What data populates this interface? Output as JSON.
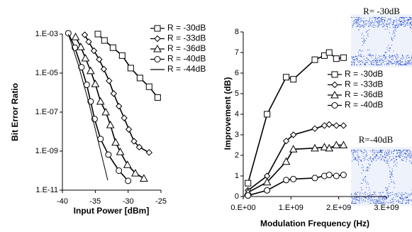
{
  "chart_data": [
    {
      "type": "line",
      "x_label": "Input Power [dBm]",
      "y_label": "Bit Error Ratio",
      "log_y": true,
      "xlim": [
        -40,
        -25
      ],
      "xticks": [
        -40,
        -35,
        -30,
        -25
      ],
      "ylim": [
        1e-11,
        0.001
      ],
      "yticks": [
        {
          "value": 0.001,
          "label": "1.E-03"
        },
        {
          "value": 1e-05,
          "label": "1.E-05"
        },
        {
          "value": 1e-07,
          "label": "1.E-07"
        },
        {
          "value": 1e-09,
          "label": "1.E-09"
        },
        {
          "value": 1e-11,
          "label": "1.E-11"
        }
      ],
      "series": [
        {
          "name": "R = -30dB",
          "marker": "square",
          "color": "#000000",
          "x": [
            -34.6,
            -33.6,
            -32.3,
            -30.9,
            -29.6,
            -28.2,
            -26.8,
            -25.5
          ],
          "values": [
            0.001,
            0.00047,
            0.0002,
            7.9e-05,
            1.8e-05,
            5.6e-06,
            2e-06,
            5.6e-07
          ]
        },
        {
          "name": "R = -33dB",
          "marker": "diamond",
          "color": "#000000",
          "x": [
            -36.6,
            -36,
            -35.2,
            -34.4,
            -33.7,
            -32.9,
            -32.2,
            -31.4,
            -30.6,
            -29.9,
            -29.1,
            -28.3,
            -26.8
          ],
          "values": [
            0.00091,
            0.0004,
            0.00014,
            5e-05,
            1.6e-05,
            4e-06,
            8.9e-07,
            2e-07,
            5e-08,
            1.3e-08,
            3.2e-09,
            1.6e-09,
            8.5e-10
          ]
        },
        {
          "name": "R = -36dB",
          "marker": "triangle",
          "color": "#000000",
          "x": [
            -38,
            -37.2,
            -36.5,
            -35.7,
            -35,
            -34.2,
            -33.4,
            -32.7,
            -31.9,
            -31.2,
            -30.1,
            -28.9,
            -27.6
          ],
          "values": [
            0.00071,
            0.00022,
            5.8e-05,
            1.3e-05,
            2.8e-06,
            3.5e-07,
            1e-07,
            2.2e-08,
            2.8e-09,
            9.1e-10,
            2e-10,
            7.4e-11,
            4e-11
          ]
        },
        {
          "name": "R = -40dB",
          "marker": "circle",
          "color": "#000000",
          "x": [
            -39.1,
            -38.1,
            -37.1,
            -36.3,
            -35.7,
            -35.1,
            -34.2,
            -33,
            -31.4,
            -30
          ],
          "values": [
            0.0011,
            0.0002,
            2e-05,
            2.5e-06,
            3.5e-07,
            4.4e-08,
            4.2e-09,
            6.6e-10,
            1e-10,
            3e-11
          ]
        },
        {
          "name": "R = -44dB",
          "marker": "none",
          "color": "#000000",
          "x": [
            -39.1,
            -37.6,
            -36,
            -34.4,
            -33.1
          ],
          "values": [
            0.001,
            2.8e-05,
            3.2e-07,
            2e-09,
            3.2e-11
          ]
        }
      ]
    },
    {
      "type": "line",
      "x_label": "Modulation Frequency (Hz)",
      "y_label": "Improvement (dB)",
      "xlim": [
        0,
        3000000000.0
      ],
      "xticks": [
        {
          "value": 0,
          "label": "0.E+00"
        },
        {
          "value": 1000000000.0,
          "label": "1.E+09"
        },
        {
          "value": 2000000000.0,
          "label": "2.E+09"
        },
        {
          "value": 3000000000.0,
          "label": "3.E+09"
        }
      ],
      "ylim": [
        0,
        8
      ],
      "yticks": [
        0,
        1,
        2,
        3,
        4,
        5,
        6,
        7,
        8
      ],
      "annotations": [
        "R= -30dB",
        "R=-40dB"
      ],
      "series": [
        {
          "name": "R = -30dB",
          "marker": "square",
          "color": "#000000",
          "x": [
            100000000.0,
            500000000.0,
            900000000.0,
            1050000000.0,
            1500000000.0,
            1700000000.0,
            1800000000.0,
            1950000000.0,
            2100000000.0
          ],
          "values": [
            0.65,
            4.0,
            5.8,
            5.7,
            6.65,
            6.85,
            7.0,
            6.7,
            6.75
          ]
        },
        {
          "name": "R = -33dB",
          "marker": "diamond",
          "color": "#000000",
          "x": [
            100000000.0,
            500000000.0,
            900000000.0,
            1050000000.0,
            1500000000.0,
            1700000000.0,
            1800000000.0,
            1950000000.0,
            2100000000.0
          ],
          "values": [
            0.3,
            1.0,
            2.7,
            3.0,
            3.3,
            3.45,
            3.5,
            3.45,
            3.45
          ]
        },
        {
          "name": "R = -36dB",
          "marker": "triangle",
          "color": "#000000",
          "x": [
            100000000.0,
            500000000.0,
            900000000.0,
            1050000000.0,
            1500000000.0,
            1700000000.0,
            1800000000.0,
            1950000000.0,
            2100000000.0
          ],
          "values": [
            0.2,
            0.7,
            1.7,
            2.3,
            2.35,
            2.4,
            2.35,
            2.5,
            2.5
          ]
        },
        {
          "name": "R = -40dB",
          "marker": "circle",
          "color": "#000000",
          "x": [
            100000000.0,
            500000000.0,
            900000000.0,
            1050000000.0,
            1500000000.0,
            1700000000.0,
            1800000000.0,
            1950000000.0,
            2100000000.0
          ],
          "values": [
            0.05,
            0.3,
            0.8,
            0.85,
            0.9,
            1.0,
            1.05,
            1.0,
            1.05
          ]
        }
      ]
    }
  ]
}
